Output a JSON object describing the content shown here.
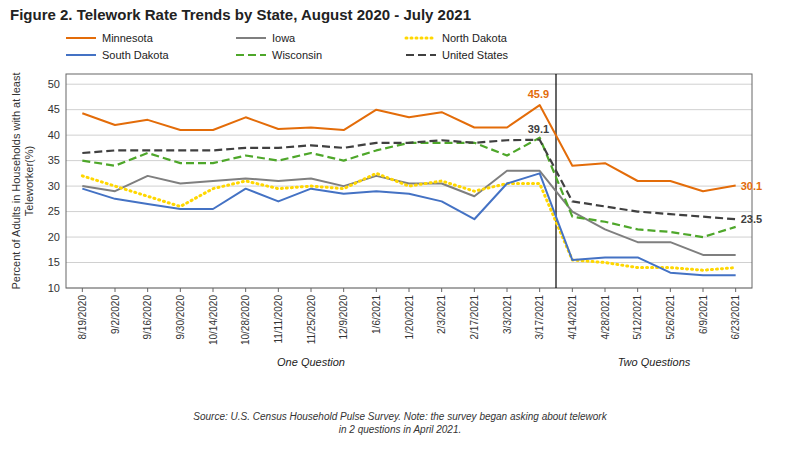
{
  "chart_data": {
    "type": "line",
    "title": "Figure 2. Telework Rate Trends by State, August 2020 - July 2021",
    "y_label": "Percent of Adults in Households with at least\nTeleworker(%)",
    "note": "Source: U.S. Census Household Pulse Survey.  Note: the survey began asking about telework\nin 2 questions in April 2021.",
    "categories": [
      "8/19/2020",
      "9/2/2020",
      "9/16/2020",
      "9/30/2020",
      "10/14/2020",
      "10/28/2020",
      "11/11/2020",
      "11/25/2020",
      "12/9/2020",
      "1/6/2021",
      "1/20/2021",
      "2/3/2021",
      "2/17/2021",
      "3/3/2021",
      "3/17/2021",
      "4/14/2021",
      "4/28/2021",
      "5/12/2021",
      "5/26/2021",
      "6/9/2021",
      "6/23/2021"
    ],
    "x_groups": [
      {
        "label": "One Question",
        "from": "8/19/2020",
        "to": "3/17/2021"
      },
      {
        "label": "Two Questions",
        "from": "4/14/2021",
        "to": "6/23/2021"
      }
    ],
    "series": [
      {
        "name": "Minnesota",
        "color": "#E36C09",
        "line_style": "solid",
        "values": [
          44.3,
          42.0,
          43.0,
          41.0,
          41.0,
          43.5,
          41.2,
          41.5,
          41.0,
          45.0,
          43.5,
          44.5,
          41.5,
          41.5,
          45.9,
          34.0,
          34.5,
          31.0,
          31.0,
          29.0,
          30.1
        ]
      },
      {
        "name": "Iowa",
        "color": "#7F7F7F",
        "line_style": "solid",
        "values": [
          30.0,
          29.0,
          32.0,
          30.5,
          31.0,
          31.5,
          31.0,
          31.5,
          30.0,
          32.0,
          30.5,
          30.5,
          28.0,
          33.0,
          33.0,
          25.0,
          21.5,
          19.0,
          19.0,
          16.5,
          16.5
        ]
      },
      {
        "name": "North Dakota",
        "color": "#FFD700",
        "line_style": "dotted",
        "values": [
          32.0,
          30.0,
          28.0,
          26.0,
          29.5,
          31.0,
          29.5,
          30.0,
          29.5,
          32.5,
          30.0,
          31.0,
          29.0,
          30.5,
          30.5,
          15.5,
          15.0,
          14.0,
          14.0,
          13.5,
          14.0
        ]
      },
      {
        "name": "South Dakota",
        "color": "#4472C4",
        "line_style": "solid",
        "values": [
          29.5,
          27.5,
          26.5,
          25.5,
          25.5,
          29.5,
          27.0,
          29.5,
          28.5,
          29.0,
          28.5,
          27.0,
          23.5,
          30.5,
          32.5,
          15.5,
          16.0,
          16.0,
          13.0,
          12.5,
          12.5
        ]
      },
      {
        "name": "Wisconsin",
        "color": "#4EA72A",
        "line_style": "dashed",
        "values": [
          35.0,
          34.0,
          36.5,
          34.5,
          34.5,
          36.0,
          35.0,
          36.5,
          35.0,
          37.0,
          38.5,
          38.5,
          38.5,
          36.0,
          39.5,
          24.0,
          23.0,
          21.5,
          21.0,
          20.0,
          22.0
        ]
      },
      {
        "name": "United States",
        "color": "#404040",
        "line_style": "dashed",
        "values": [
          36.5,
          37.0,
          37.0,
          37.0,
          37.0,
          37.5,
          37.5,
          38.0,
          37.5,
          38.5,
          38.5,
          39.0,
          38.5,
          39.0,
          39.1,
          27.0,
          26.0,
          25.0,
          24.5,
          24.0,
          23.5
        ]
      }
    ],
    "annotations": [
      {
        "text": "45.9",
        "x": "3/17/2021",
        "y": 45.9,
        "color": "#E36C09",
        "position": "above"
      },
      {
        "text": "39.1",
        "x": "3/17/2021",
        "y": 39.1,
        "color": "#404040",
        "position": "above"
      },
      {
        "text": "30.1",
        "x": "6/23/2021",
        "y": 30.1,
        "color": "#E36C09",
        "position": "right"
      },
      {
        "text": "23.5",
        "x": "6/23/2021",
        "y": 23.5,
        "color": "#404040",
        "position": "right"
      }
    ],
    "ylim": [
      10,
      52
    ],
    "yticks": [
      10,
      15,
      20,
      25,
      30,
      35,
      40,
      45,
      50
    ],
    "grid": true,
    "legend": "top"
  }
}
